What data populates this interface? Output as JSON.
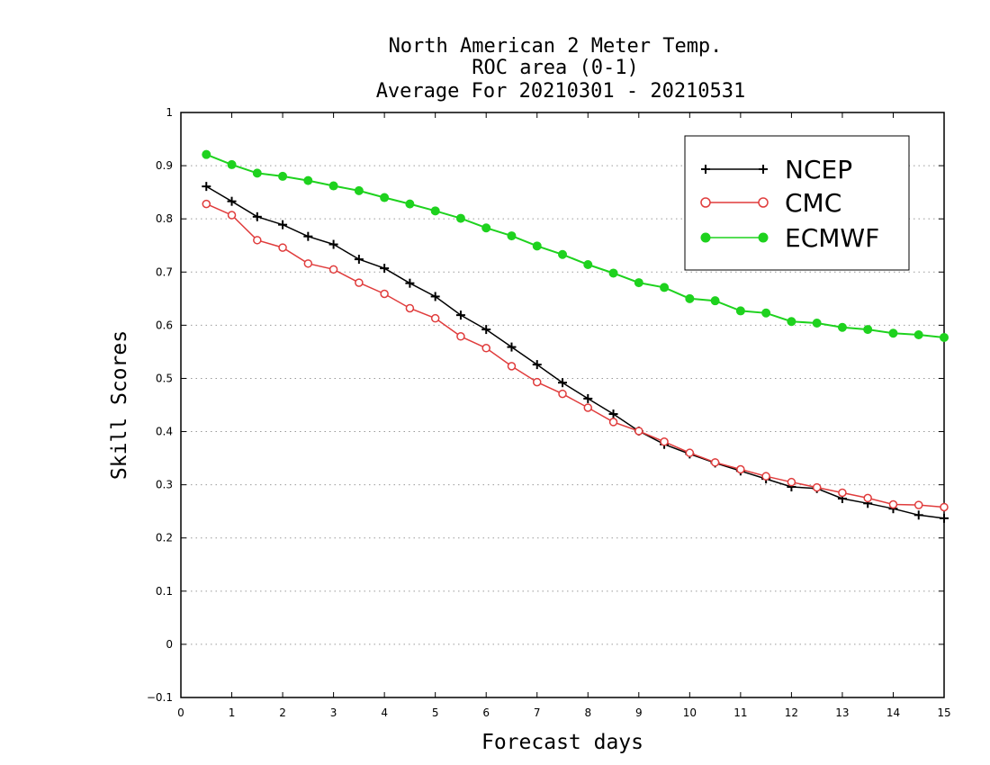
{
  "chart_data": {
    "type": "line",
    "title_lines": [
      "North American 2 Meter Temp.",
      "ROC area (0-1)",
      "Average For 20210301 - 20210531"
    ],
    "xlabel": "Forecast days",
    "ylabel": "Skill Scores",
    "xlim": [
      0,
      15
    ],
    "ylim": [
      -0.1,
      1
    ],
    "xticks": [
      0,
      1,
      2,
      3,
      4,
      5,
      6,
      7,
      8,
      9,
      10,
      11,
      12,
      13,
      14,
      15
    ],
    "xtick_labels": [
      "0",
      "1",
      "2",
      "3",
      "4",
      "5",
      "6",
      "7",
      "8",
      "9",
      "10",
      "11",
      "12",
      "13",
      "14",
      "15"
    ],
    "yticks": [
      -0.1,
      0,
      0.1,
      0.2,
      0.3,
      0.4,
      0.5,
      0.6,
      0.7,
      0.8,
      0.9,
      1
    ],
    "ytick_labels": [
      "−0.1",
      "0",
      "0.1",
      "0.2",
      "0.3",
      "0.4",
      "0.5",
      "0.6",
      "0.7",
      "0.8",
      "0.9",
      "1"
    ],
    "grid": "horizontal-dotted",
    "legend_position": "top-right",
    "x": [
      0.5,
      1,
      1.5,
      2,
      2.5,
      3,
      3.5,
      4,
      4.5,
      5,
      5.5,
      6,
      6.5,
      7,
      7.5,
      8,
      8.5,
      9,
      9.5,
      10,
      10.5,
      11,
      11.5,
      12,
      12.5,
      13,
      13.5,
      14,
      14.5,
      15
    ],
    "series": [
      {
        "name": "NCEP",
        "color": "#000000",
        "marker": "plus",
        "values": [
          0.861,
          0.833,
          0.804,
          0.789,
          0.767,
          0.752,
          0.724,
          0.707,
          0.679,
          0.654,
          0.619,
          0.592,
          0.559,
          0.526,
          0.492,
          0.462,
          0.433,
          0.401,
          0.376,
          0.358,
          0.341,
          0.326,
          0.311,
          0.296,
          0.293,
          0.274,
          0.265,
          0.255,
          0.243,
          0.237
        ]
      },
      {
        "name": "CMC",
        "color": "#e03c3c",
        "marker": "open-circle",
        "values": [
          0.828,
          0.807,
          0.76,
          0.746,
          0.716,
          0.705,
          0.68,
          0.659,
          0.632,
          0.613,
          0.579,
          0.557,
          0.523,
          0.493,
          0.471,
          0.445,
          0.418,
          0.401,
          0.381,
          0.36,
          0.342,
          0.329,
          0.316,
          0.305,
          0.295,
          0.285,
          0.275,
          0.263,
          0.262,
          0.258
        ]
      },
      {
        "name": "ECMWF",
        "color": "#1ed21e",
        "marker": "filled-circle",
        "values": [
          0.921,
          0.902,
          0.886,
          0.88,
          0.872,
          0.862,
          0.853,
          0.84,
          0.828,
          0.815,
          0.801,
          0.783,
          0.768,
          0.749,
          0.733,
          0.714,
          0.698,
          0.68,
          0.671,
          0.65,
          0.646,
          0.627,
          0.623,
          0.607,
          0.604,
          0.596,
          0.592,
          0.585,
          0.582,
          0.577
        ]
      }
    ]
  }
}
